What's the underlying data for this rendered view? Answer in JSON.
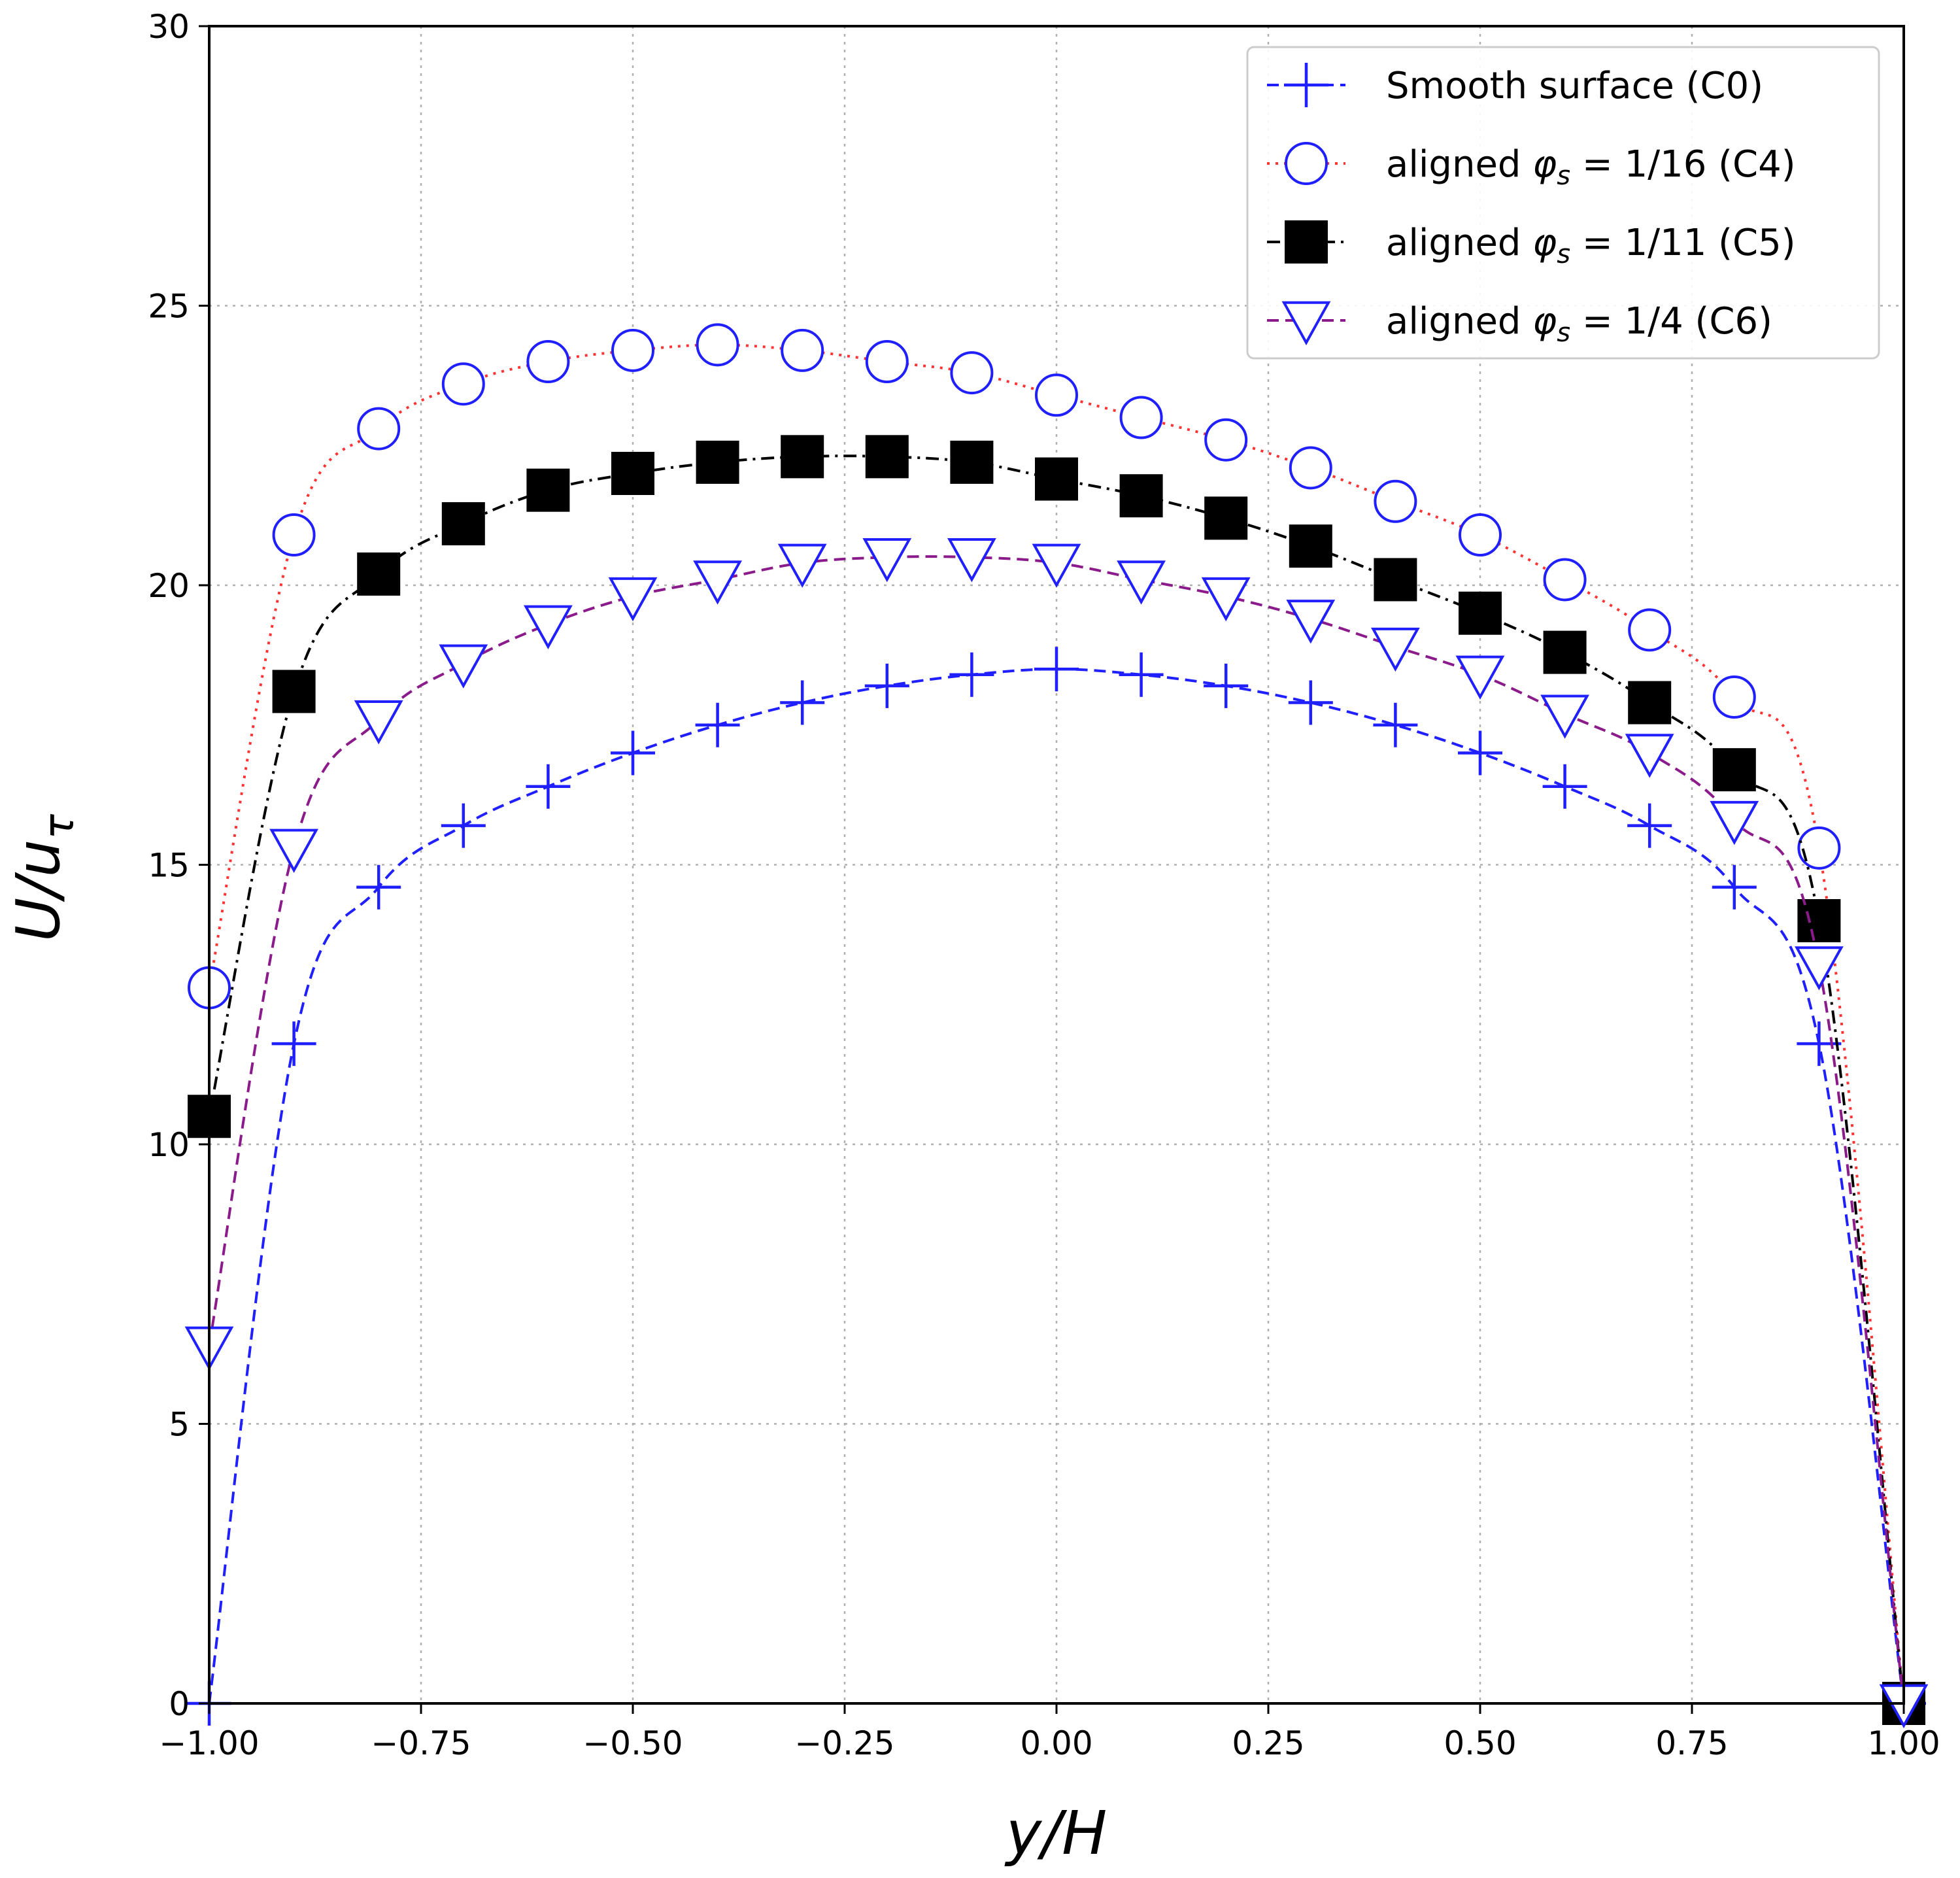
{
  "chart_data": {
    "type": "line",
    "title": "",
    "xlabel": "y/H",
    "ylabel": "U/u_τ",
    "xlim": [
      -1.0,
      1.0
    ],
    "ylim": [
      0,
      30
    ],
    "xticks": [
      -1.0,
      -0.75,
      -0.5,
      -0.25,
      0.0,
      0.25,
      0.5,
      0.75,
      1.0
    ],
    "xtick_labels": [
      "−1.00",
      "−0.75",
      "−0.50",
      "−0.25",
      "0.00",
      "0.25",
      "0.50",
      "0.75",
      "1.00"
    ],
    "yticks": [
      0,
      5,
      10,
      15,
      20,
      25,
      30
    ],
    "ytick_labels": [
      "0",
      "5",
      "10",
      "15",
      "20",
      "25",
      "30"
    ],
    "grid": true,
    "legend_position": "top-right",
    "series": [
      {
        "name": "Smooth surface (C0)",
        "legend_parts": [
          "Smooth surface (C0)"
        ],
        "color": "#1f1fff",
        "line_style": "dashed",
        "marker": "plus",
        "points": [
          [
            -1.0,
            0.0
          ],
          [
            -0.9,
            11.8
          ],
          [
            -0.8,
            14.6
          ],
          [
            -0.7,
            15.7
          ],
          [
            -0.6,
            16.4
          ],
          [
            -0.5,
            17.0
          ],
          [
            -0.4,
            17.5
          ],
          [
            -0.3,
            17.9
          ],
          [
            -0.2,
            18.2
          ],
          [
            -0.1,
            18.4
          ],
          [
            0.0,
            18.5
          ],
          [
            0.1,
            18.4
          ],
          [
            0.2,
            18.2
          ],
          [
            0.3,
            17.9
          ],
          [
            0.4,
            17.5
          ],
          [
            0.5,
            17.0
          ],
          [
            0.6,
            16.4
          ],
          [
            0.7,
            15.7
          ],
          [
            0.8,
            14.6
          ],
          [
            0.9,
            11.8
          ],
          [
            1.0,
            0.0
          ]
        ]
      },
      {
        "name": "aligned φs = 1/16 (C4)",
        "legend_parts": [
          "aligned ",
          "φ",
          "s",
          " = 1/16 (C4)"
        ],
        "color": "#ff3333",
        "marker_color": "#1f1fff",
        "line_style": "dotted",
        "marker": "circle",
        "points": [
          [
            -1.0,
            12.8
          ],
          [
            -0.9,
            20.9
          ],
          [
            -0.8,
            22.8
          ],
          [
            -0.7,
            23.6
          ],
          [
            -0.6,
            24.0
          ],
          [
            -0.5,
            24.2
          ],
          [
            -0.4,
            24.3
          ],
          [
            -0.3,
            24.2
          ],
          [
            -0.2,
            24.0
          ],
          [
            -0.1,
            23.8
          ],
          [
            0.0,
            23.4
          ],
          [
            0.1,
            23.0
          ],
          [
            0.2,
            22.6
          ],
          [
            0.3,
            22.1
          ],
          [
            0.4,
            21.5
          ],
          [
            0.5,
            20.9
          ],
          [
            0.6,
            20.1
          ],
          [
            0.7,
            19.2
          ],
          [
            0.8,
            18.0
          ],
          [
            0.9,
            15.3
          ],
          [
            1.0,
            0.0
          ]
        ]
      },
      {
        "name": "aligned φs = 1/11 (C5)",
        "legend_parts": [
          "aligned ",
          "φ",
          "s",
          " = 1/11 (C5)"
        ],
        "color": "#000000",
        "line_style": "dash-dot",
        "marker": "square",
        "points": [
          [
            -1.0,
            10.5
          ],
          [
            -0.9,
            18.1
          ],
          [
            -0.8,
            20.2
          ],
          [
            -0.7,
            21.1
          ],
          [
            -0.6,
            21.7
          ],
          [
            -0.5,
            22.0
          ],
          [
            -0.4,
            22.2
          ],
          [
            -0.3,
            22.3
          ],
          [
            -0.2,
            22.3
          ],
          [
            -0.1,
            22.2
          ],
          [
            0.0,
            21.9
          ],
          [
            0.1,
            21.6
          ],
          [
            0.2,
            21.2
          ],
          [
            0.3,
            20.7
          ],
          [
            0.4,
            20.1
          ],
          [
            0.5,
            19.5
          ],
          [
            0.6,
            18.8
          ],
          [
            0.7,
            17.9
          ],
          [
            0.8,
            16.7
          ],
          [
            0.9,
            14.0
          ],
          [
            1.0,
            0.0
          ]
        ]
      },
      {
        "name": "aligned φs = 1/4 (C6)",
        "legend_parts": [
          "aligned ",
          "φ",
          "s",
          " = 1/4 (C6)"
        ],
        "color": "#8b1a8b",
        "marker_color": "#1f1fff",
        "line_style": "dashed",
        "marker": "triangle-down",
        "points": [
          [
            -1.0,
            6.4
          ],
          [
            -0.9,
            15.3
          ],
          [
            -0.8,
            17.6
          ],
          [
            -0.7,
            18.6
          ],
          [
            -0.6,
            19.3
          ],
          [
            -0.5,
            19.8
          ],
          [
            -0.4,
            20.1
          ],
          [
            -0.3,
            20.4
          ],
          [
            -0.2,
            20.5
          ],
          [
            -0.1,
            20.5
          ],
          [
            0.0,
            20.4
          ],
          [
            0.1,
            20.1
          ],
          [
            0.2,
            19.8
          ],
          [
            0.3,
            19.4
          ],
          [
            0.4,
            18.9
          ],
          [
            0.5,
            18.4
          ],
          [
            0.6,
            17.7
          ],
          [
            0.7,
            17.0
          ],
          [
            0.8,
            15.8
          ],
          [
            0.9,
            13.2
          ],
          [
            1.0,
            0.0
          ]
        ]
      }
    ]
  }
}
